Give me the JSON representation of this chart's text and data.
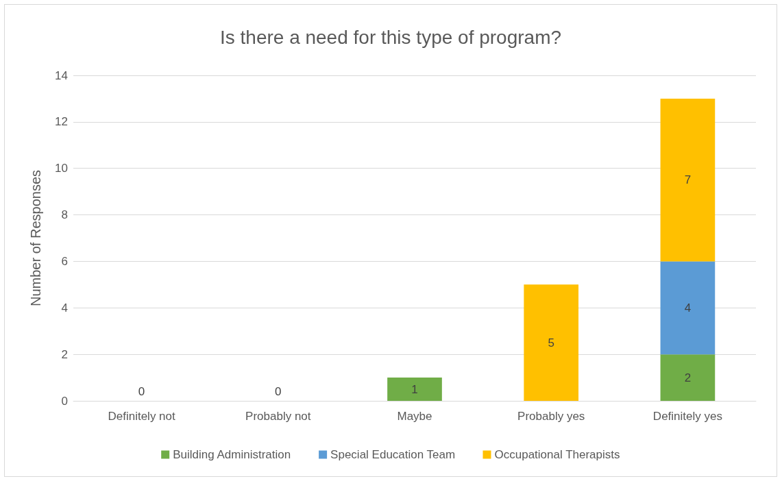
{
  "chart_data": {
    "type": "bar",
    "title": "Is there a need for this type of program?",
    "ylabel": "Number of Responses",
    "categories": [
      "Definitely not",
      "Probably not",
      "Maybe",
      "Probably yes",
      "Definitely yes"
    ],
    "stacked": true,
    "series": [
      {
        "name": "Building Administration",
        "color": "#70ad47",
        "values": [
          0,
          0,
          1,
          0,
          2
        ],
        "value_labels": [
          "0",
          "0",
          "1",
          null,
          "2"
        ]
      },
      {
        "name": "Special Education Team",
        "color": "#5b9bd5",
        "values": [
          0,
          0,
          0,
          0,
          4
        ],
        "value_labels": [
          null,
          null,
          null,
          null,
          "4"
        ]
      },
      {
        "name": "Occupational Therapists",
        "color": "#ffc000",
        "values": [
          0,
          0,
          0,
          5,
          7
        ],
        "value_labels": [
          null,
          null,
          null,
          "5",
          "7"
        ]
      }
    ],
    "ylim": [
      0,
      14
    ],
    "yticks": [
      0,
      2,
      4,
      6,
      8,
      10,
      12,
      14
    ],
    "grid": "y",
    "legend": "bottom"
  }
}
